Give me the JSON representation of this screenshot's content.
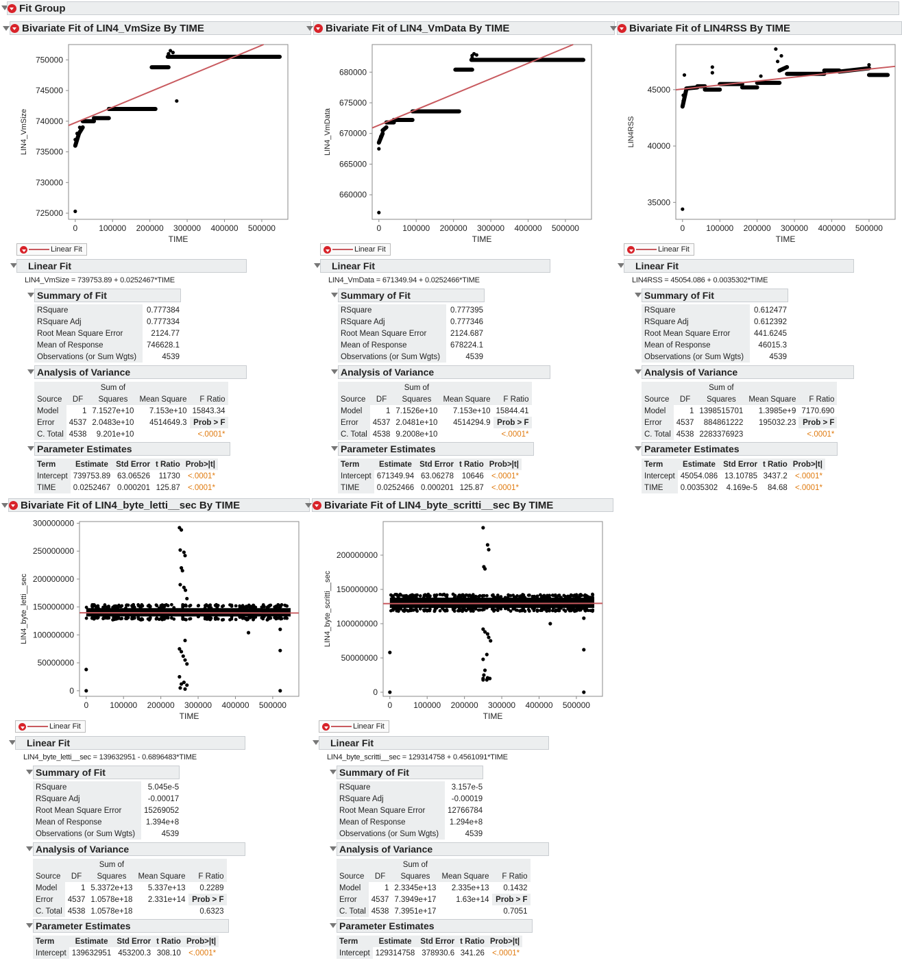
{
  "fit_group_title": "Fit Group",
  "legend_label": "Linear Fit",
  "sections": {
    "linear_fit": "Linear Fit",
    "summary": "Summary of Fit",
    "anova": "Analysis of Variance",
    "params": "Parameter Estimates"
  },
  "summary_labels": [
    "RSquare",
    "RSquare Adj",
    "Root Mean Square Error",
    "Mean of Response",
    "Observations (or Sum Wgts)"
  ],
  "anova_headers": {
    "source": "Source",
    "df": "DF",
    "ss1": "Sum of",
    "ss2": "Squares",
    "ms": "Mean Square",
    "f": "F Ratio",
    "probf": "Prob > F"
  },
  "anova_rows": [
    "Model",
    "Error",
    "C. Total"
  ],
  "param_headers": {
    "term": "Term",
    "est": "Estimate",
    "se": "Std Error",
    "t": "t Ratio",
    "p": "Prob>|t|"
  },
  "colors": {
    "fit_line": "#c8595e",
    "header_bg": "#eceeef",
    "prob": "#e07b10"
  },
  "panels": [
    {
      "title": "Bivariate Fit of LIN4_VmSize By TIME",
      "equation": "LIN4_VmSize = 739753.89 + 0.0252467*TIME",
      "summary": [
        "0.777384",
        "0.777334",
        "2124.77",
        "746628.1",
        "4539"
      ],
      "anova": [
        [
          "1",
          "7.1527e+10",
          "7.153e+10",
          "15843.34"
        ],
        [
          "4537",
          "2.0483e+10",
          "4514649.3",
          ""
        ],
        [
          "4538",
          "9.201e+10",
          "",
          ""
        ]
      ],
      "anova_p": "<.0001*",
      "params": [
        [
          "Intercept",
          "739753.89",
          "63.06526",
          "11730",
          "<.0001*"
        ],
        [
          "TIME",
          "0.0252467",
          "0.000201",
          "125.87",
          "<.0001*"
        ]
      ]
    },
    {
      "title": "Bivariate Fit of LIN4_VmData By TIME",
      "equation": "LIN4_VmData = 671349.94 + 0.0252466*TIME",
      "summary": [
        "0.777395",
        "0.777346",
        "2124.687",
        "678224.1",
        "4539"
      ],
      "anova": [
        [
          "1",
          "7.1526e+10",
          "7.153e+10",
          "15844.41"
        ],
        [
          "4537",
          "2.0481e+10",
          "4514294.9",
          ""
        ],
        [
          "4538",
          "9.2008e+10",
          "",
          ""
        ]
      ],
      "anova_p": "<.0001*",
      "params": [
        [
          "Intercept",
          "671349.94",
          "63.06278",
          "10646",
          "<.0001*"
        ],
        [
          "TIME",
          "0.0252466",
          "0.000201",
          "125.87",
          "<.0001*"
        ]
      ]
    },
    {
      "title": "Bivariate Fit of LIN4RSS By TIME",
      "equation": "LIN4RSS = 45054.086 + 0.0035302*TIME",
      "summary": [
        "0.612477",
        "0.612392",
        "441.6245",
        "46015.3",
        "4539"
      ],
      "anova": [
        [
          "1",
          "1398515701",
          "1.3985e+9",
          "7170.690"
        ],
        [
          "4537",
          "884861222",
          "195032.23",
          ""
        ],
        [
          "4538",
          "2283376923",
          "",
          ""
        ]
      ],
      "anova_p": "<.0001*",
      "params": [
        [
          "Intercept",
          "45054.086",
          "13.10785",
          "3437.2",
          "<.0001*"
        ],
        [
          "TIME",
          "0.0035302",
          "4.169e-5",
          "84.68",
          "<.0001*"
        ]
      ]
    },
    {
      "title": "Bivariate Fit of LIN4_byte_letti__sec By TIME",
      "equation": "LIN4_byte_letti__sec = 139632951 - 0.6896483*TIME",
      "summary": [
        "5.045e-5",
        "-0.00017",
        "15269052",
        "1.394e+8",
        "4539"
      ],
      "anova": [
        [
          "1",
          "5.3372e+13",
          "5.337e+13",
          "0.2289"
        ],
        [
          "4537",
          "1.0578e+18",
          "2.331e+14",
          ""
        ],
        [
          "4538",
          "1.0578e+18",
          "",
          ""
        ]
      ],
      "anova_p": "0.6323",
      "params": [
        [
          "Intercept",
          "139632951",
          "453200.3",
          "308.10",
          "<.0001*"
        ]
      ]
    },
    {
      "title": "Bivariate Fit of LIN4_byte_scritti__sec By TIME",
      "equation": "LIN4_byte_scritti__sec = 129314758 + 0.4561091*TIME",
      "summary": [
        "3.157e-5",
        "-0.00019",
        "12766784",
        "1.294e+8",
        "4539"
      ],
      "anova": [
        [
          "1",
          "2.3345e+13",
          "2.335e+13",
          "0.1432"
        ],
        [
          "4537",
          "7.3949e+17",
          "1.63e+14",
          ""
        ],
        [
          "4538",
          "7.3951e+17",
          "",
          ""
        ]
      ],
      "anova_p": "0.7051",
      "params": [
        [
          "Intercept",
          "129314758",
          "378930.6",
          "341.26",
          "<.0001*"
        ]
      ]
    }
  ],
  "chart_data": [
    {
      "type": "scatter",
      "xlabel": "TIME",
      "ylabel": "LIN4_VmSize",
      "xlim": [
        -18000,
        570000
      ],
      "ylim": [
        724000,
        752500
      ],
      "xticks": [
        0,
        100000,
        200000,
        300000,
        400000,
        500000
      ],
      "yticks": [
        725000,
        730000,
        735000,
        740000,
        745000,
        750000
      ],
      "fit": {
        "intercept": 739753.89,
        "slope": 0.0252467
      },
      "segments": [
        [
          0,
          10000,
          736000,
          738000
        ],
        [
          10000,
          20000,
          738000,
          739000
        ],
        [
          20000,
          50000,
          740000,
          740000
        ],
        [
          50000,
          90000,
          740500,
          740500
        ],
        [
          90000,
          215000,
          742000,
          742000
        ],
        [
          205000,
          250000,
          748800,
          748800
        ],
        [
          248000,
          548000,
          750500,
          750500
        ]
      ],
      "points": [
        [
          0,
          725300
        ],
        [
          0,
          736000
        ],
        [
          0,
          737000
        ],
        [
          5000,
          738000
        ],
        [
          12000,
          739000
        ],
        [
          250000,
          751000
        ],
        [
          255000,
          751500
        ],
        [
          262000,
          751200
        ],
        [
          272000,
          743300
        ],
        [
          250000,
          750800
        ]
      ]
    },
    {
      "type": "scatter",
      "xlabel": "TIME",
      "ylabel": "LIN4_VmData",
      "xlim": [
        -18000,
        570000
      ],
      "ylim": [
        656000,
        684500
      ],
      "xticks": [
        0,
        100000,
        200000,
        300000,
        400000,
        500000
      ],
      "yticks": [
        660000,
        665000,
        670000,
        675000,
        680000
      ],
      "fit": {
        "intercept": 671349.94,
        "slope": 0.0252466
      },
      "segments": [
        [
          0,
          10000,
          668500,
          670000
        ],
        [
          10000,
          20000,
          670500,
          671000
        ],
        [
          20000,
          40000,
          671800,
          671800
        ],
        [
          40000,
          90000,
          672200,
          672200
        ],
        [
          90000,
          215000,
          673600,
          673600
        ],
        [
          205000,
          250000,
          680400,
          680400
        ],
        [
          248000,
          548000,
          682000,
          682000
        ]
      ],
      "points": [
        [
          0,
          657100
        ],
        [
          0,
          667500
        ],
        [
          0,
          668500
        ],
        [
          5000,
          669500
        ],
        [
          12000,
          670500
        ],
        [
          250000,
          682700
        ],
        [
          255000,
          683000
        ],
        [
          262000,
          682800
        ],
        [
          250000,
          682300
        ]
      ]
    },
    {
      "type": "scatter",
      "xlabel": "TIME",
      "ylabel": "LIN4RSS",
      "xlim": [
        -18000,
        570000
      ],
      "ylim": [
        33500,
        49000
      ],
      "xticks": [
        0,
        100000,
        200000,
        300000,
        400000,
        500000
      ],
      "yticks": [
        35000,
        40000,
        45000
      ],
      "fit": {
        "intercept": 45054.086,
        "slope": 0.0035302
      },
      "segments": [
        [
          0,
          10000,
          43500,
          45000
        ],
        [
          10000,
          40000,
          45100,
          45200
        ],
        [
          40000,
          60000,
          45300,
          45300
        ],
        [
          60000,
          100000,
          45000,
          45000
        ],
        [
          100000,
          160000,
          45500,
          45500
        ],
        [
          160000,
          200000,
          45200,
          45200
        ],
        [
          200000,
          260000,
          45600,
          45600
        ],
        [
          260000,
          280000,
          46700,
          47000
        ],
        [
          280000,
          380000,
          46400,
          46400
        ],
        [
          380000,
          420000,
          46700,
          46700
        ],
        [
          420000,
          500000,
          46600,
          46900
        ],
        [
          500000,
          550000,
          46300,
          46300
        ]
      ],
      "points": [
        [
          0,
          34400
        ],
        [
          2000,
          44000
        ],
        [
          2000,
          44500
        ],
        [
          5000,
          46300
        ],
        [
          80000,
          46500
        ],
        [
          80000,
          47000
        ],
        [
          250000,
          48600
        ],
        [
          255000,
          47500
        ],
        [
          265000,
          48000
        ],
        [
          210000,
          46200
        ],
        [
          500000,
          47200
        ]
      ]
    },
    {
      "type": "scatter",
      "xlabel": "TIME",
      "ylabel": "LIN4_byte_letti__sec",
      "xlim": [
        -18000,
        570000
      ],
      "ylim": [
        -10000000,
        303000000
      ],
      "xticks": [
        0,
        100000,
        200000,
        300000,
        400000,
        500000
      ],
      "yticks": [
        0,
        50000000,
        100000000,
        150000000,
        200000000,
        250000000,
        300000000
      ],
      "fit": {
        "intercept": 139632951,
        "slope": -0.6896483
      },
      "band": {
        "x": [
          0,
          548000
        ],
        "y": [
          133000000,
          148000000
        ]
      },
      "points": [
        [
          0,
          0
        ],
        [
          0,
          38000000
        ],
        [
          250000,
          292000000
        ],
        [
          255000,
          288000000
        ],
        [
          252000,
          252000000
        ],
        [
          262000,
          248000000
        ],
        [
          265000,
          242000000
        ],
        [
          255000,
          220000000
        ],
        [
          258000,
          215000000
        ],
        [
          252000,
          190000000
        ],
        [
          262000,
          185000000
        ],
        [
          266000,
          180000000
        ],
        [
          270000,
          165000000
        ],
        [
          250000,
          75000000
        ],
        [
          255000,
          70000000
        ],
        [
          260000,
          62000000
        ],
        [
          265000,
          55000000
        ],
        [
          270000,
          48000000
        ],
        [
          265000,
          90000000
        ],
        [
          250000,
          25000000
        ],
        [
          255000,
          12000000
        ],
        [
          262000,
          15000000
        ],
        [
          270000,
          10000000
        ],
        [
          252000,
          5000000
        ],
        [
          265000,
          3000000
        ],
        [
          435000,
          104000000
        ],
        [
          520000,
          110000000
        ],
        [
          520000,
          72000000
        ],
        [
          520000,
          0
        ]
      ]
    },
    {
      "type": "scatter",
      "xlabel": "TIME",
      "ylabel": "LIN4_byte_scritti__sec",
      "xlim": [
        -18000,
        570000
      ],
      "ylim": [
        -6000000,
        249000000
      ],
      "xticks": [
        0,
        100000,
        200000,
        300000,
        400000,
        500000
      ],
      "yticks": [
        0,
        50000000,
        100000000,
        150000000,
        200000000
      ],
      "fit": {
        "intercept": 129314758,
        "slope": 0.4561091
      },
      "band": {
        "x": [
          0,
          548000
        ],
        "y": [
          123000000,
          138000000
        ]
      },
      "points": [
        [
          0,
          0
        ],
        [
          0,
          58000000
        ],
        [
          250000,
          240000000
        ],
        [
          262000,
          215000000
        ],
        [
          265000,
          208000000
        ],
        [
          252000,
          183000000
        ],
        [
          255000,
          180000000
        ],
        [
          250000,
          92000000
        ],
        [
          255000,
          88000000
        ],
        [
          262000,
          85000000
        ],
        [
          265000,
          80000000
        ],
        [
          270000,
          75000000
        ],
        [
          260000,
          55000000
        ],
        [
          250000,
          48000000
        ],
        [
          255000,
          32000000
        ],
        [
          252000,
          25000000
        ],
        [
          250000,
          20000000
        ],
        [
          262000,
          21000000
        ],
        [
          268000,
          20000000
        ],
        [
          250000,
          18000000
        ],
        [
          260000,
          18000000
        ],
        [
          430000,
          100000000
        ],
        [
          520000,
          108000000
        ],
        [
          520000,
          62000000
        ],
        [
          520000,
          0
        ]
      ]
    }
  ]
}
